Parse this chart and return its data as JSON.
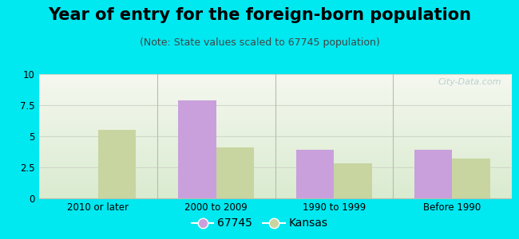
{
  "title": "Year of entry for the foreign-born population",
  "subtitle": "(Note: State values scaled to 67745 population)",
  "categories": [
    "2010 or later",
    "2000 to 2009",
    "1990 to 1999",
    "Before 1990"
  ],
  "values_67745": [
    0,
    7.9,
    3.9,
    3.9
  ],
  "values_kansas": [
    5.5,
    4.1,
    2.8,
    3.2
  ],
  "color_67745": "#c9a0dc",
  "color_kansas": "#c8d5a0",
  "ylim": [
    0,
    10
  ],
  "yticks": [
    0,
    2.5,
    5,
    7.5,
    10
  ],
  "ytick_labels": [
    "0",
    "2.5",
    "5",
    "7.5",
    "10"
  ],
  "legend_label_67745": "67745",
  "legend_label_kansas": "Kansas",
  "background_outer": "#00e8f0",
  "background_plot_top": "#f5f8f0",
  "background_plot_bottom": "#daebd0",
  "bar_width": 0.32,
  "title_fontsize": 15,
  "subtitle_fontsize": 9,
  "axis_label_fontsize": 8.5,
  "legend_fontsize": 10,
  "watermark_color": "#b0c8cc",
  "grid_color": "#d0d8c8",
  "separator_color": "#b0c0b0"
}
